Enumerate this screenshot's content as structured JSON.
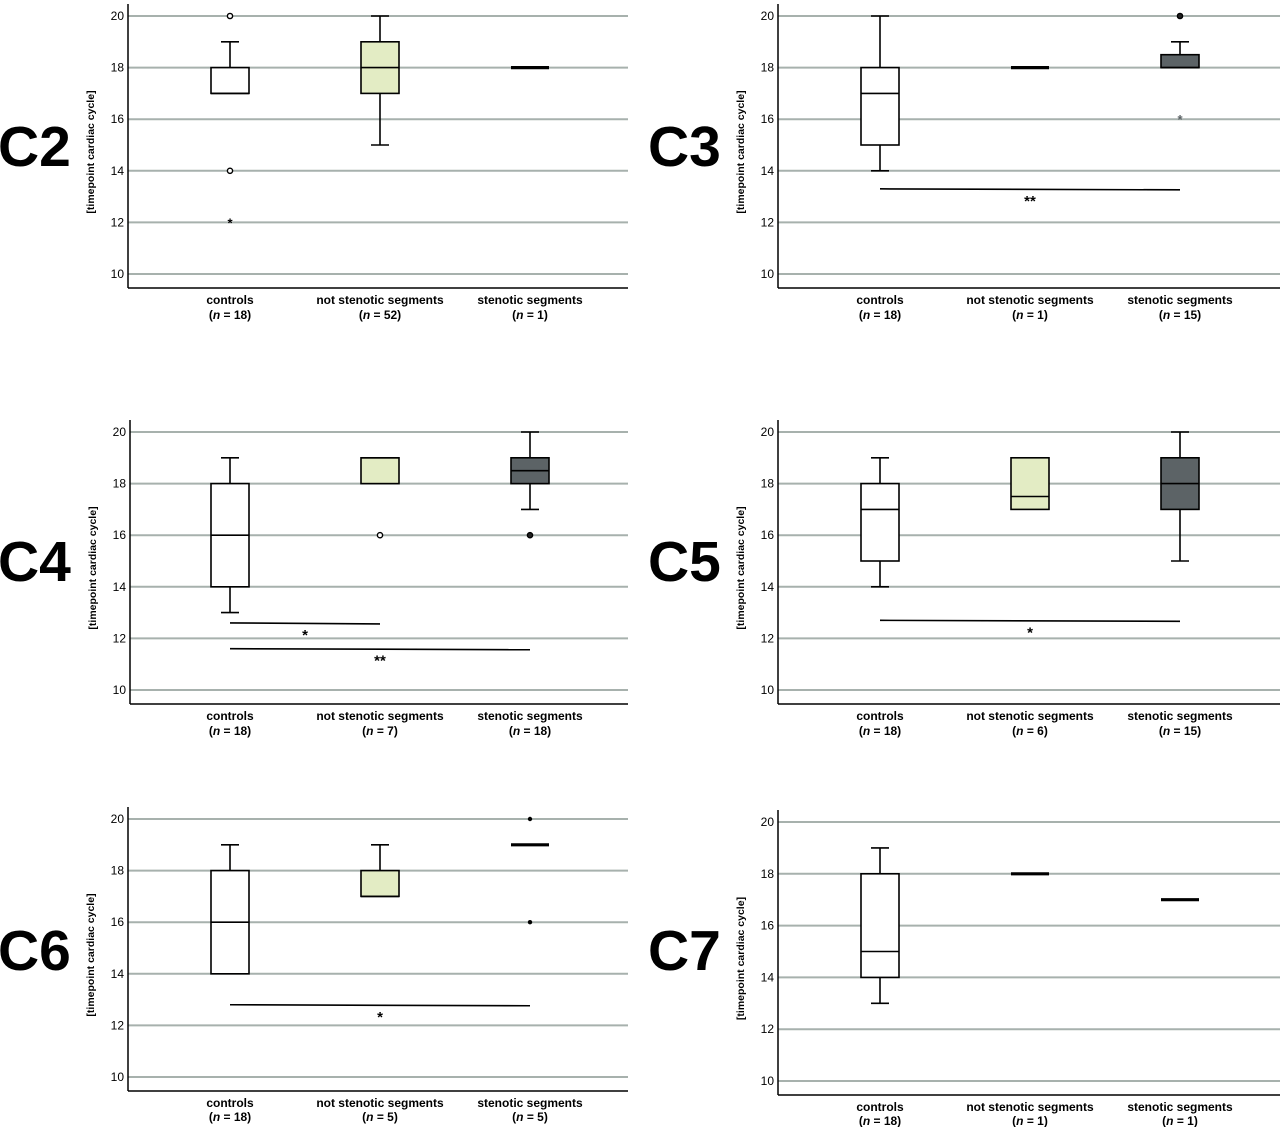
{
  "chart_data": [
    {
      "type": "box",
      "panel_label": "C2",
      "ylabel": "[timepoint cardiac cycle]",
      "ylim": [
        10,
        20
      ],
      "yticks": [
        10,
        12,
        14,
        16,
        18,
        20
      ],
      "grid": "horizontal",
      "categories": [
        {
          "name": "controls",
          "n": "18"
        },
        {
          "name": "not stenotic segments",
          "n": "52"
        },
        {
          "name": "stenotic segments",
          "n": "1"
        }
      ],
      "boxes": [
        {
          "min": 17,
          "q1": 17,
          "median": 17,
          "q3": 18,
          "max": 19,
          "fill": "#ffffff",
          "outliers": [
            {
              "y": 20,
              "marker": "circle"
            },
            {
              "y": 14,
              "marker": "circle"
            },
            {
              "y": 12,
              "marker": "star"
            }
          ]
        },
        {
          "min": 15,
          "q1": 17,
          "median": 18,
          "q3": 19,
          "max": 20,
          "fill": "#e3ecc4",
          "outliers": []
        },
        {
          "min": 18,
          "q1": 18,
          "median": 18,
          "q3": 18,
          "max": 18,
          "fill": "#ffffff",
          "outliers": []
        }
      ],
      "significance": []
    },
    {
      "type": "box",
      "panel_label": "C3",
      "ylabel": "[timepoint cardiac cycle]",
      "ylim": [
        10,
        20
      ],
      "yticks": [
        10,
        12,
        14,
        16,
        18,
        20
      ],
      "grid": "horizontal",
      "categories": [
        {
          "name": "controls",
          "n": "18"
        },
        {
          "name": "not stenotic segments",
          "n": "1"
        },
        {
          "name": "stenotic segments",
          "n": "15"
        }
      ],
      "boxes": [
        {
          "min": 14,
          "q1": 15,
          "median": 17,
          "q3": 18,
          "max": 20,
          "fill": "#ffffff",
          "outliers": []
        },
        {
          "min": 18,
          "q1": 18,
          "median": 18,
          "q3": 18,
          "max": 18,
          "fill": "#ffffff",
          "outliers": []
        },
        {
          "min": 18,
          "q1": 18,
          "median": 18,
          "q3": 18.5,
          "max": 19,
          "fill": "#5c6366",
          "outliers": [
            {
              "y": 20,
              "marker": "circle"
            },
            {
              "y": 16,
              "marker": "star"
            }
          ]
        }
      ],
      "significance": [
        {
          "from": 0,
          "to": 2,
          "y": 13.3,
          "label": "**"
        }
      ]
    },
    {
      "type": "box",
      "panel_label": "C4",
      "ylabel": "[timepoint cardiac cycle]",
      "ylim": [
        10,
        20
      ],
      "yticks": [
        10,
        12,
        14,
        16,
        18,
        20
      ],
      "grid": "horizontal",
      "categories": [
        {
          "name": "controls",
          "n": "18"
        },
        {
          "name": "not stenotic segments",
          "n": "7"
        },
        {
          "name": "stenotic segments",
          "n": "18"
        }
      ],
      "boxes": [
        {
          "min": 13,
          "q1": 14,
          "median": 16,
          "q3": 18,
          "max": 19,
          "fill": "#ffffff",
          "outliers": []
        },
        {
          "min": 18,
          "q1": 18,
          "median": 19,
          "q3": 19,
          "max": 19,
          "fill": "#e3ecc4",
          "outliers": [
            {
              "y": 16,
              "marker": "circle"
            }
          ]
        },
        {
          "min": 17,
          "q1": 18,
          "median": 18.5,
          "q3": 19,
          "max": 20,
          "fill": "#5c6366",
          "outliers": [
            {
              "y": 16,
              "marker": "circle"
            }
          ]
        }
      ],
      "significance": [
        {
          "from": 0,
          "to": 1,
          "y": 12.6,
          "label": "*"
        },
        {
          "from": 0,
          "to": 2,
          "y": 11.6,
          "label": "**"
        }
      ]
    },
    {
      "type": "box",
      "panel_label": "C5",
      "ylabel": "[timepoint cardiac cycle]",
      "ylim": [
        10,
        20
      ],
      "yticks": [
        10,
        12,
        14,
        16,
        18,
        20
      ],
      "grid": "horizontal",
      "categories": [
        {
          "name": "controls",
          "n": "18"
        },
        {
          "name": "not stenotic segments",
          "n": "6"
        },
        {
          "name": "stenotic segments",
          "n": "15"
        }
      ],
      "boxes": [
        {
          "min": 14,
          "q1": 15,
          "median": 17,
          "q3": 18,
          "max": 19,
          "fill": "#ffffff",
          "outliers": []
        },
        {
          "min": 17,
          "q1": 17,
          "median": 17.5,
          "q3": 19,
          "max": 19,
          "fill": "#e3ecc4",
          "outliers": []
        },
        {
          "min": 15,
          "q1": 17,
          "median": 18,
          "q3": 19,
          "max": 20,
          "fill": "#5c6366",
          "outliers": []
        }
      ],
      "significance": [
        {
          "from": 0,
          "to": 2,
          "y": 12.7,
          "label": "*"
        }
      ]
    },
    {
      "type": "box",
      "panel_label": "C6",
      "ylabel": "[timepoint cardiac cycle]",
      "ylim": [
        10,
        20
      ],
      "yticks": [
        10,
        12,
        14,
        16,
        18,
        20
      ],
      "grid": "horizontal",
      "categories": [
        {
          "name": "controls",
          "n": "18"
        },
        {
          "name": "not stenotic segments",
          "n": "5"
        },
        {
          "name": "stenotic segments",
          "n": "5"
        }
      ],
      "boxes": [
        {
          "min": 14,
          "q1": 14,
          "median": 16,
          "q3": 18,
          "max": 19,
          "fill": "#ffffff",
          "outliers": []
        },
        {
          "min": 17,
          "q1": 17,
          "median": 17,
          "q3": 18,
          "max": 19,
          "fill": "#e3ecc4",
          "outliers": []
        },
        {
          "min": 19,
          "q1": 19,
          "median": 19,
          "q3": 19,
          "max": 19,
          "fill": "#5c6366",
          "outliers": [
            {
              "y": 20,
              "marker": "dot"
            },
            {
              "y": 16,
              "marker": "dot"
            }
          ]
        }
      ],
      "significance": [
        {
          "from": 0,
          "to": 2,
          "y": 12.8,
          "label": "*"
        }
      ]
    },
    {
      "type": "box",
      "panel_label": "C7",
      "ylabel": "[timepoint cardiac cycle]",
      "ylim": [
        10,
        20
      ],
      "yticks": [
        10,
        12,
        14,
        16,
        18,
        20
      ],
      "grid": "horizontal",
      "categories": [
        {
          "name": "controls",
          "n": "18"
        },
        {
          "name": "not stenotic segments",
          "n": "1"
        },
        {
          "name": "stenotic segments",
          "n": "1"
        }
      ],
      "boxes": [
        {
          "min": 13,
          "q1": 14,
          "median": 15,
          "q3": 18,
          "max": 19,
          "fill": "#ffffff",
          "outliers": []
        },
        {
          "min": 18,
          "q1": 18,
          "median": 18,
          "q3": 18,
          "max": 18,
          "fill": "#ffffff",
          "outliers": []
        },
        {
          "min": 17,
          "q1": 17,
          "median": 17,
          "q3": 17,
          "max": 17,
          "fill": "#ffffff",
          "outliers": []
        }
      ],
      "significance": []
    }
  ],
  "style": {
    "grid_color": "#a7b1ad",
    "axis_color": "#000000",
    "box_stroke": "#000000",
    "outlier_grey": "#5c6366"
  }
}
